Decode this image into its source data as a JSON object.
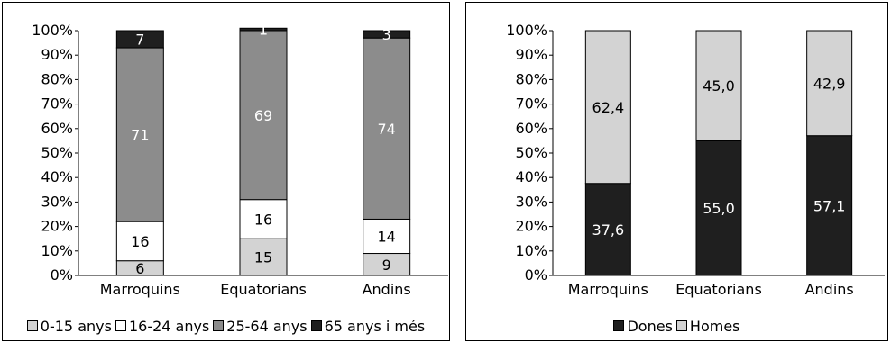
{
  "chart_data": [
    {
      "type": "bar",
      "stacked": "percent",
      "categories": [
        "Marroquins",
        "Equatorians",
        "Andins"
      ],
      "yticks": [
        "0%",
        "10%",
        "20%",
        "30%",
        "40%",
        "50%",
        "60%",
        "70%",
        "80%",
        "90%",
        "100%"
      ],
      "ylim": [
        0,
        100
      ],
      "series": [
        {
          "name": "0-15 anys",
          "color": "#d3d3d3",
          "values": [
            6,
            15,
            9
          ],
          "value_labels": [
            "6",
            "15",
            "9"
          ],
          "label_color": "#000000"
        },
        {
          "name": "16-24 anys",
          "color": "#ffffff",
          "values": [
            16,
            16,
            14
          ],
          "value_labels": [
            "16",
            "16",
            "14"
          ],
          "label_color": "#000000"
        },
        {
          "name": "25-64 anys",
          "color": "#8c8c8c",
          "values": [
            71,
            69,
            74
          ],
          "value_labels": [
            "71",
            "69",
            "74"
          ],
          "label_color": "#ffffff"
        },
        {
          "name": "65 anys i més",
          "color": "#1f1f1f",
          "values": [
            7,
            1,
            3
          ],
          "value_labels": [
            "7",
            "1",
            "3"
          ],
          "label_color": "#ffffff"
        }
      ],
      "legend_position": "bottom"
    },
    {
      "type": "bar",
      "stacked": "percent",
      "categories": [
        "Marroquins",
        "Equatorians",
        "Andins"
      ],
      "yticks": [
        "0%",
        "10%",
        "20%",
        "30%",
        "40%",
        "50%",
        "60%",
        "70%",
        "80%",
        "90%",
        "100%"
      ],
      "ylim": [
        0,
        100
      ],
      "series": [
        {
          "name": "Dones",
          "color": "#1f1f1f",
          "values": [
            37.6,
            55.0,
            57.1
          ],
          "value_labels": [
            "37,6",
            "55,0",
            "57,1"
          ],
          "label_color": "#ffffff"
        },
        {
          "name": "Homes",
          "color": "#d3d3d3",
          "values": [
            62.4,
            45.0,
            42.9
          ],
          "value_labels": [
            "62,4",
            "45,0",
            "42,9"
          ],
          "label_color": "#000000"
        }
      ],
      "legend_position": "bottom"
    }
  ]
}
